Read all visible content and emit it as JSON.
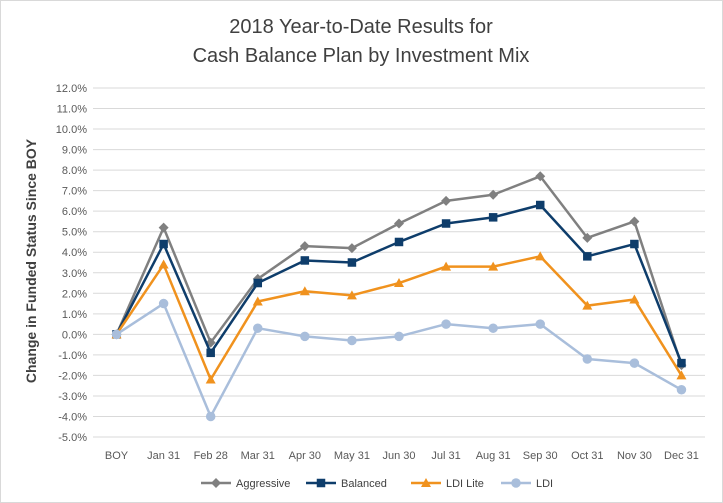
{
  "chart_data": {
    "type": "line",
    "title_lines": [
      "2018 Year-to-Date Results for",
      "Cash Balance Plan by Investment Mix"
    ],
    "xlabel": "",
    "ylabel": "Change in Funded Status Since BOY",
    "categories": [
      "BOY",
      "Jan 31",
      "Feb 28",
      "Mar 31",
      "Apr 30",
      "May 31",
      "Jun 30",
      "Jul 31",
      "Aug 31",
      "Sep 30",
      "Oct 31",
      "Nov 30",
      "Dec 31"
    ],
    "ylim": [
      -5.0,
      12.0
    ],
    "yticks": [
      -5.0,
      -4.0,
      -3.0,
      -2.0,
      -1.0,
      0.0,
      1.0,
      2.0,
      3.0,
      4.0,
      5.0,
      6.0,
      7.0,
      8.0,
      9.0,
      10.0,
      11.0,
      12.0
    ],
    "ytick_labels": [
      "-5.0%",
      "-4.0%",
      "-3.0%",
      "-2.0%",
      "-1.0%",
      "0.0%",
      "1.0%",
      "2.0%",
      "3.0%",
      "4.0%",
      "5.0%",
      "6.0%",
      "7.0%",
      "8.0%",
      "9.0%",
      "10.0%",
      "11.0%",
      "12.0%"
    ],
    "grid": true,
    "legend_position": "bottom",
    "series": [
      {
        "name": "Aggressive",
        "color": "#808080",
        "marker": "diamond",
        "values": [
          0.0,
          5.2,
          -0.4,
          2.7,
          4.3,
          4.2,
          5.4,
          6.5,
          6.8,
          7.7,
          4.7,
          5.5,
          -1.5
        ]
      },
      {
        "name": "Balanced",
        "color": "#0e3d6b",
        "marker": "square",
        "values": [
          0.0,
          4.4,
          -0.9,
          2.5,
          3.6,
          3.5,
          4.5,
          5.4,
          5.7,
          6.3,
          3.8,
          4.4,
          -1.4
        ]
      },
      {
        "name": "LDI Lite",
        "color": "#f0921e",
        "marker": "triangle",
        "values": [
          0.0,
          3.4,
          -2.2,
          1.6,
          2.1,
          1.9,
          2.5,
          3.3,
          3.3,
          3.8,
          1.4,
          1.7,
          -2.0
        ]
      },
      {
        "name": "LDI",
        "color": "#a9bedb",
        "marker": "circle",
        "values": [
          0.0,
          1.5,
          -4.0,
          0.3,
          -0.1,
          -0.3,
          -0.1,
          0.5,
          0.3,
          0.5,
          -1.2,
          -1.4,
          -2.7
        ]
      }
    ]
  }
}
